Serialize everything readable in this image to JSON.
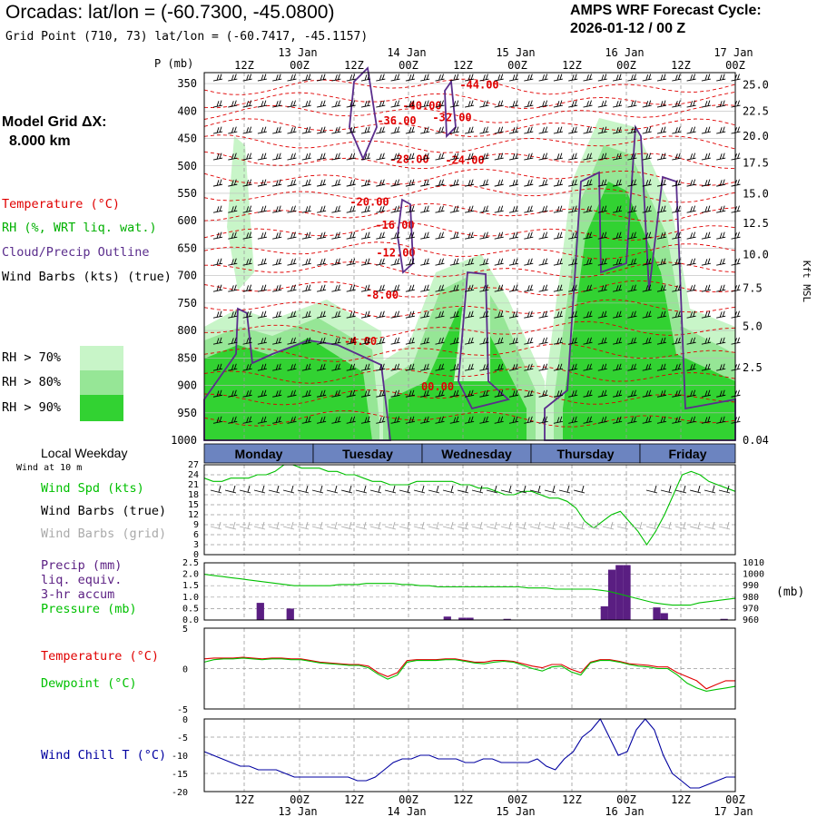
{
  "header": {
    "title": "Orcadas:  lat/lon = (-60.7300, -45.0800)",
    "subtitle": "Grid Point (710, 73) lat/lon = (-60.7417, -45.1157)",
    "cycle_line1": "AMPS WRF Forecast Cycle:",
    "cycle_line2": "2026-01-12 / 00  Z",
    "grid_line1": "Model Grid ΔX:",
    "grid_line2": "8.000 km"
  },
  "legend": {
    "temperature": "Temperature (°C)",
    "rh": "RH (%, WRT liq. wat.)",
    "cloud": "Cloud/Precip Outline",
    "barbs": "Wind Barbs (kts) (true)",
    "rh70": "RH > 70%",
    "rh80": "RH > 80%",
    "rh90": "RH > 90%"
  },
  "colors": {
    "temp": "#e00000",
    "rh70": "#c8f5c8",
    "rh80": "#96e696",
    "rh90": "#32d232",
    "cloud": "#5a2d8c",
    "precip": "#5a1e82",
    "pressure": "#00c000",
    "windchill": "#0000a0",
    "grid": "#999999"
  },
  "time_axis": {
    "hour_labels": [
      "12Z",
      "00Z",
      "12Z",
      "00Z",
      "12Z",
      "00Z",
      "12Z",
      "00Z",
      "12Z",
      "00Z"
    ],
    "date_labels": [
      "13 Jan",
      "14 Jan",
      "15 Jan",
      "16 Jan",
      "17 Jan"
    ],
    "day_labels": [
      "Monday",
      "Tuesday",
      "Wednesday",
      "Thursday",
      "Friday"
    ]
  },
  "chart_data": [
    {
      "type": "heatmap",
      "ylabel": "P (mb)",
      "ylabel_right": "Kft MSL",
      "pressure_ticks": [
        350,
        400,
        450,
        500,
        550,
        600,
        650,
        700,
        750,
        800,
        850,
        900,
        950,
        1000
      ],
      "height_ticks": [
        "25.0",
        "22.5",
        "20.0",
        "17.5",
        "15.0",
        "12.5",
        "10.0",
        "7.5",
        "5.0",
        "2.5",
        "0.04"
      ],
      "height_tick_pressure": [
        352,
        400,
        446,
        495,
        551,
        605,
        662,
        723,
        792,
        868,
        1000
      ],
      "temperature_labels": [
        {
          "text": "-44.00",
          "p": 352
        },
        {
          "text": "-40.00",
          "p": 390
        },
        {
          "text": "-32.00",
          "p": 412
        },
        {
          "text": "-36.00",
          "p": 418
        },
        {
          "text": "-28.00",
          "p": 488
        },
        {
          "text": "-24.00",
          "p": 490
        },
        {
          "text": "-20.00",
          "p": 566
        },
        {
          "text": "-16.00",
          "p": 608
        },
        {
          "text": "-12.00",
          "p": 658
        },
        {
          "text": "-8.00",
          "p": 735
        },
        {
          "text": "-4.00",
          "p": 820
        },
        {
          "text": "00.00",
          "p": 902
        }
      ]
    },
    {
      "type": "line",
      "title": "Wind Spd (kts)",
      "label_extra": "Wind Barbs (true)",
      "label_grid": "Wind Barbs (grid)",
      "header": "Local Weekday",
      "sub": "Wind at 10 m",
      "y_ticks": [
        0,
        3,
        6,
        9,
        12,
        15,
        18,
        21,
        24,
        27
      ],
      "ylim": [
        0,
        27
      ],
      "series": [
        {
          "name": "Wind Spd (kts)",
          "values": [
            23,
            22,
            22,
            23,
            23,
            23,
            24,
            24,
            25,
            27,
            27,
            26,
            26,
            26,
            25,
            25,
            24,
            24,
            23,
            22,
            22,
            21,
            21,
            21,
            22,
            22,
            22,
            22,
            22,
            21,
            21,
            20,
            20,
            19,
            18,
            18,
            19,
            19,
            18,
            17,
            17,
            16,
            14,
            10,
            8,
            10,
            12,
            13,
            10,
            7,
            3,
            7,
            12,
            18,
            24,
            25,
            24,
            22,
            21,
            20,
            19
          ]
        }
      ]
    },
    {
      "type": "bar",
      "title": "Precip (mm)",
      "label2": "liq. equiv.",
      "label3": "3-hr accum",
      "label4": "Pressure (mb)",
      "unit_right": "(mb)",
      "y_ticks": [
        "0.0",
        "0.5",
        "1.0",
        "1.5",
        "2.0",
        "2.5"
      ],
      "pressure_ticks": [
        "960",
        "970",
        "980",
        "990",
        "1000",
        "1010"
      ],
      "ylim": [
        0,
        2.5
      ],
      "pressure_range": [
        960,
        1010
      ],
      "precip": [
        0,
        0,
        0,
        0,
        0,
        0,
        0,
        0.75,
        0,
        0,
        0,
        0.5,
        0,
        0,
        0,
        0,
        0,
        0,
        0,
        0,
        0,
        0,
        0,
        0,
        0,
        0,
        0,
        0,
        0,
        0,
        0,
        0,
        0.15,
        0,
        0.1,
        0.1,
        0,
        0,
        0,
        0,
        0.05,
        0,
        0,
        0,
        0,
        0,
        0,
        0,
        0,
        0,
        0,
        0,
        0,
        0.6,
        2.2,
        2.4,
        2.4,
        0,
        0,
        0,
        0.55,
        0.3,
        0,
        0,
        0,
        0,
        0,
        0,
        0,
        0.05,
        0
      ],
      "pressure": [
        1000,
        999,
        998,
        997,
        996,
        995,
        994,
        993,
        992,
        991,
        990,
        990,
        990,
        990,
        990,
        991,
        991,
        991,
        992,
        992,
        992,
        992,
        991,
        991,
        990,
        990,
        989,
        989,
        989,
        989,
        989,
        989,
        989,
        989,
        989,
        989,
        988,
        988,
        988,
        987,
        987,
        987,
        987,
        987,
        986,
        985,
        983,
        981,
        979,
        977,
        975,
        974,
        973,
        973,
        973,
        975,
        976,
        977,
        978,
        979
      ]
    },
    {
      "type": "line",
      "title": "Temperature (°C)",
      "label2": "Dewpoint (°C)",
      "y_ticks": [
        "5",
        "0",
        "-5"
      ],
      "ylim": [
        -5,
        5
      ],
      "series": [
        {
          "name": "Temperature (°C)",
          "values": [
            1.2,
            1.3,
            1.3,
            1.3,
            1.4,
            1.3,
            1.2,
            1.3,
            1.3,
            1.2,
            1.2,
            1.0,
            0.8,
            0.7,
            0.6,
            0.5,
            0.5,
            0.3,
            -0.5,
            -1.0,
            -0.5,
            1.0,
            1.1,
            1.1,
            1.1,
            1.2,
            1.2,
            1.0,
            0.8,
            0.8,
            1.0,
            1.0,
            0.9,
            0.6,
            0.3,
            0.1,
            0.5,
            0.5,
            -0.1,
            -0.5,
            0.8,
            1.1,
            1.1,
            0.9,
            0.6,
            0.5,
            0.4,
            0.2,
            0.2,
            -0.5,
            -1.0,
            -1.5,
            -2.5,
            -2.0,
            -1.5,
            -1.5
          ]
        },
        {
          "name": "Dewpoint (°C)",
          "values": [
            0.8,
            1.1,
            1.2,
            1.2,
            1.3,
            1.2,
            1.1,
            1.2,
            1.2,
            1.1,
            1.1,
            0.9,
            0.7,
            0.6,
            0.5,
            0.4,
            0.4,
            0.1,
            -0.7,
            -1.3,
            -0.8,
            0.8,
            1.0,
            1.0,
            1.0,
            1.1,
            1.1,
            0.9,
            0.7,
            0.6,
            0.8,
            0.9,
            0.8,
            0.4,
            0.0,
            -0.3,
            0.2,
            0.3,
            -0.4,
            -0.8,
            0.7,
            1.0,
            1.0,
            0.8,
            0.5,
            0.3,
            0.2,
            0.0,
            0.0,
            -0.8,
            -1.8,
            -2.4,
            -2.8,
            -2.6,
            -2.4,
            -2.2
          ]
        }
      ]
    },
    {
      "type": "line",
      "title": "Wind Chill T (°C)",
      "y_ticks": [
        "0",
        "-5",
        "-10",
        "-15",
        "-20"
      ],
      "ylim": [
        -20,
        0
      ],
      "series": [
        {
          "name": "Wind Chill T (°C)",
          "values": [
            -9,
            -10,
            -11,
            -12,
            -13,
            -13,
            -14,
            -14,
            -14,
            -15,
            -16,
            -16,
            -16,
            -16,
            -16,
            -16,
            -16,
            -17,
            -17,
            -16,
            -14,
            -12,
            -11,
            -11,
            -10,
            -10,
            -11,
            -11,
            -11,
            -12,
            -12,
            -11,
            -11,
            -12,
            -12,
            -12,
            -12,
            -11,
            -13,
            -14,
            -11,
            -9,
            -5,
            -3,
            0,
            -5,
            -10,
            -9,
            -3,
            0,
            -3,
            -10,
            -15,
            -17,
            -19,
            -19,
            -18,
            -17,
            -16,
            -16
          ]
        }
      ]
    }
  ]
}
